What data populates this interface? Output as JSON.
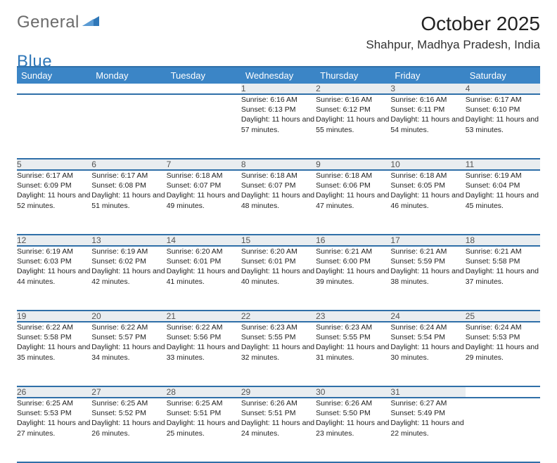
{
  "brand": {
    "word1": "General",
    "word2": "Blue"
  },
  "title": "October 2025",
  "location": "Shahpur, Madhya Pradesh, India",
  "colors": {
    "header_bg": "#3b85c6",
    "header_border": "#2f6fa8",
    "daynum_bg": "#e9edf0",
    "text": "#333333",
    "brand_gray": "#6b6b6b",
    "brand_blue": "#2f77b8"
  },
  "weekdays": [
    "Sunday",
    "Monday",
    "Tuesday",
    "Wednesday",
    "Thursday",
    "Friday",
    "Saturday"
  ],
  "weeks": [
    [
      null,
      null,
      null,
      {
        "n": "1",
        "sr": "6:16 AM",
        "ss": "6:13 PM",
        "dl": "11 hours and 57 minutes."
      },
      {
        "n": "2",
        "sr": "6:16 AM",
        "ss": "6:12 PM",
        "dl": "11 hours and 55 minutes."
      },
      {
        "n": "3",
        "sr": "6:16 AM",
        "ss": "6:11 PM",
        "dl": "11 hours and 54 minutes."
      },
      {
        "n": "4",
        "sr": "6:17 AM",
        "ss": "6:10 PM",
        "dl": "11 hours and 53 minutes."
      }
    ],
    [
      {
        "n": "5",
        "sr": "6:17 AM",
        "ss": "6:09 PM",
        "dl": "11 hours and 52 minutes."
      },
      {
        "n": "6",
        "sr": "6:17 AM",
        "ss": "6:08 PM",
        "dl": "11 hours and 51 minutes."
      },
      {
        "n": "7",
        "sr": "6:18 AM",
        "ss": "6:07 PM",
        "dl": "11 hours and 49 minutes."
      },
      {
        "n": "8",
        "sr": "6:18 AM",
        "ss": "6:07 PM",
        "dl": "11 hours and 48 minutes."
      },
      {
        "n": "9",
        "sr": "6:18 AM",
        "ss": "6:06 PM",
        "dl": "11 hours and 47 minutes."
      },
      {
        "n": "10",
        "sr": "6:18 AM",
        "ss": "6:05 PM",
        "dl": "11 hours and 46 minutes."
      },
      {
        "n": "11",
        "sr": "6:19 AM",
        "ss": "6:04 PM",
        "dl": "11 hours and 45 minutes."
      }
    ],
    [
      {
        "n": "12",
        "sr": "6:19 AM",
        "ss": "6:03 PM",
        "dl": "11 hours and 44 minutes."
      },
      {
        "n": "13",
        "sr": "6:19 AM",
        "ss": "6:02 PM",
        "dl": "11 hours and 42 minutes."
      },
      {
        "n": "14",
        "sr": "6:20 AM",
        "ss": "6:01 PM",
        "dl": "11 hours and 41 minutes."
      },
      {
        "n": "15",
        "sr": "6:20 AM",
        "ss": "6:01 PM",
        "dl": "11 hours and 40 minutes."
      },
      {
        "n": "16",
        "sr": "6:21 AM",
        "ss": "6:00 PM",
        "dl": "11 hours and 39 minutes."
      },
      {
        "n": "17",
        "sr": "6:21 AM",
        "ss": "5:59 PM",
        "dl": "11 hours and 38 minutes."
      },
      {
        "n": "18",
        "sr": "6:21 AM",
        "ss": "5:58 PM",
        "dl": "11 hours and 37 minutes."
      }
    ],
    [
      {
        "n": "19",
        "sr": "6:22 AM",
        "ss": "5:58 PM",
        "dl": "11 hours and 35 minutes."
      },
      {
        "n": "20",
        "sr": "6:22 AM",
        "ss": "5:57 PM",
        "dl": "11 hours and 34 minutes."
      },
      {
        "n": "21",
        "sr": "6:22 AM",
        "ss": "5:56 PM",
        "dl": "11 hours and 33 minutes."
      },
      {
        "n": "22",
        "sr": "6:23 AM",
        "ss": "5:55 PM",
        "dl": "11 hours and 32 minutes."
      },
      {
        "n": "23",
        "sr": "6:23 AM",
        "ss": "5:55 PM",
        "dl": "11 hours and 31 minutes."
      },
      {
        "n": "24",
        "sr": "6:24 AM",
        "ss": "5:54 PM",
        "dl": "11 hours and 30 minutes."
      },
      {
        "n": "25",
        "sr": "6:24 AM",
        "ss": "5:53 PM",
        "dl": "11 hours and 29 minutes."
      }
    ],
    [
      {
        "n": "26",
        "sr": "6:25 AM",
        "ss": "5:53 PM",
        "dl": "11 hours and 27 minutes."
      },
      {
        "n": "27",
        "sr": "6:25 AM",
        "ss": "5:52 PM",
        "dl": "11 hours and 26 minutes."
      },
      {
        "n": "28",
        "sr": "6:25 AM",
        "ss": "5:51 PM",
        "dl": "11 hours and 25 minutes."
      },
      {
        "n": "29",
        "sr": "6:26 AM",
        "ss": "5:51 PM",
        "dl": "11 hours and 24 minutes."
      },
      {
        "n": "30",
        "sr": "6:26 AM",
        "ss": "5:50 PM",
        "dl": "11 hours and 23 minutes."
      },
      {
        "n": "31",
        "sr": "6:27 AM",
        "ss": "5:49 PM",
        "dl": "11 hours and 22 minutes."
      },
      null
    ]
  ],
  "labels": {
    "sunrise": "Sunrise:",
    "sunset": "Sunset:",
    "daylight": "Daylight:"
  }
}
